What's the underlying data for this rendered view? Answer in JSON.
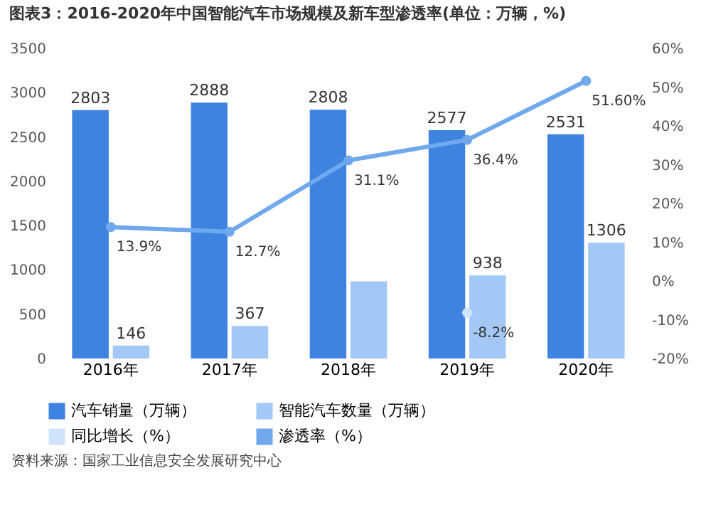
{
  "chart_data": {
    "type": "bar",
    "title": "图表3：2016-2020年中国智能汽车市场规模及新车型渗透率(单位：万辆，%)",
    "categories": [
      "2016年",
      "2017年",
      "2018年",
      "2019年",
      "2020年"
    ],
    "series": [
      {
        "name": "汽车销量（万辆）",
        "color": "#3f83e0",
        "values": [
          2803,
          2888,
          2808,
          2577,
          2531
        ],
        "value_labels": [
          "2803",
          "2888",
          "2808",
          "2577",
          "2531"
        ]
      },
      {
        "name": "智能汽车数量（万辆）",
        "color": "#a4c8f5",
        "values": [
          146,
          367,
          870,
          938,
          1306
        ],
        "value_labels": [
          "146",
          "367",
          null,
          "938",
          "1306"
        ]
      },
      {
        "name": "同比增长（%）",
        "type": "line",
        "axis": "y2",
        "color": "#cfe3fb",
        "values": [
          null,
          null,
          null,
          -8.2,
          null
        ],
        "value_labels": [
          null,
          null,
          null,
          "-8.2%",
          null
        ]
      },
      {
        "name": "渗透率（%）",
        "type": "line",
        "axis": "y2",
        "color": "#6fa8ec",
        "values": [
          13.9,
          12.7,
          31.1,
          36.4,
          51.6
        ],
        "value_labels": [
          "13.9%",
          "12.7%",
          "31.1%",
          "36.4%",
          "51.60%"
        ]
      }
    ],
    "ylim": [
      0,
      3500
    ],
    "yticks": [
      0,
      500,
      1000,
      1500,
      2000,
      2500,
      3000,
      3500
    ],
    "y2lim": [
      -20,
      60
    ],
    "y2ticks": [
      {
        "value": -20,
        "label": "-20%"
      },
      {
        "value": -10,
        "label": "-10%"
      },
      {
        "value": 0,
        "label": "0%"
      },
      {
        "value": 10,
        "label": "10%"
      },
      {
        "value": 20,
        "label": "20%"
      },
      {
        "value": 30,
        "label": "30%"
      },
      {
        "value": 40,
        "label": "40%"
      },
      {
        "value": 50,
        "label": "50%"
      },
      {
        "value": 60,
        "label": "60%"
      }
    ],
    "legend": "bottom",
    "grid": false,
    "marker": "circle",
    "line_style": "solid",
    "annotations": [
      "资料来源：国家工业信息安全发展研究中心"
    ]
  }
}
